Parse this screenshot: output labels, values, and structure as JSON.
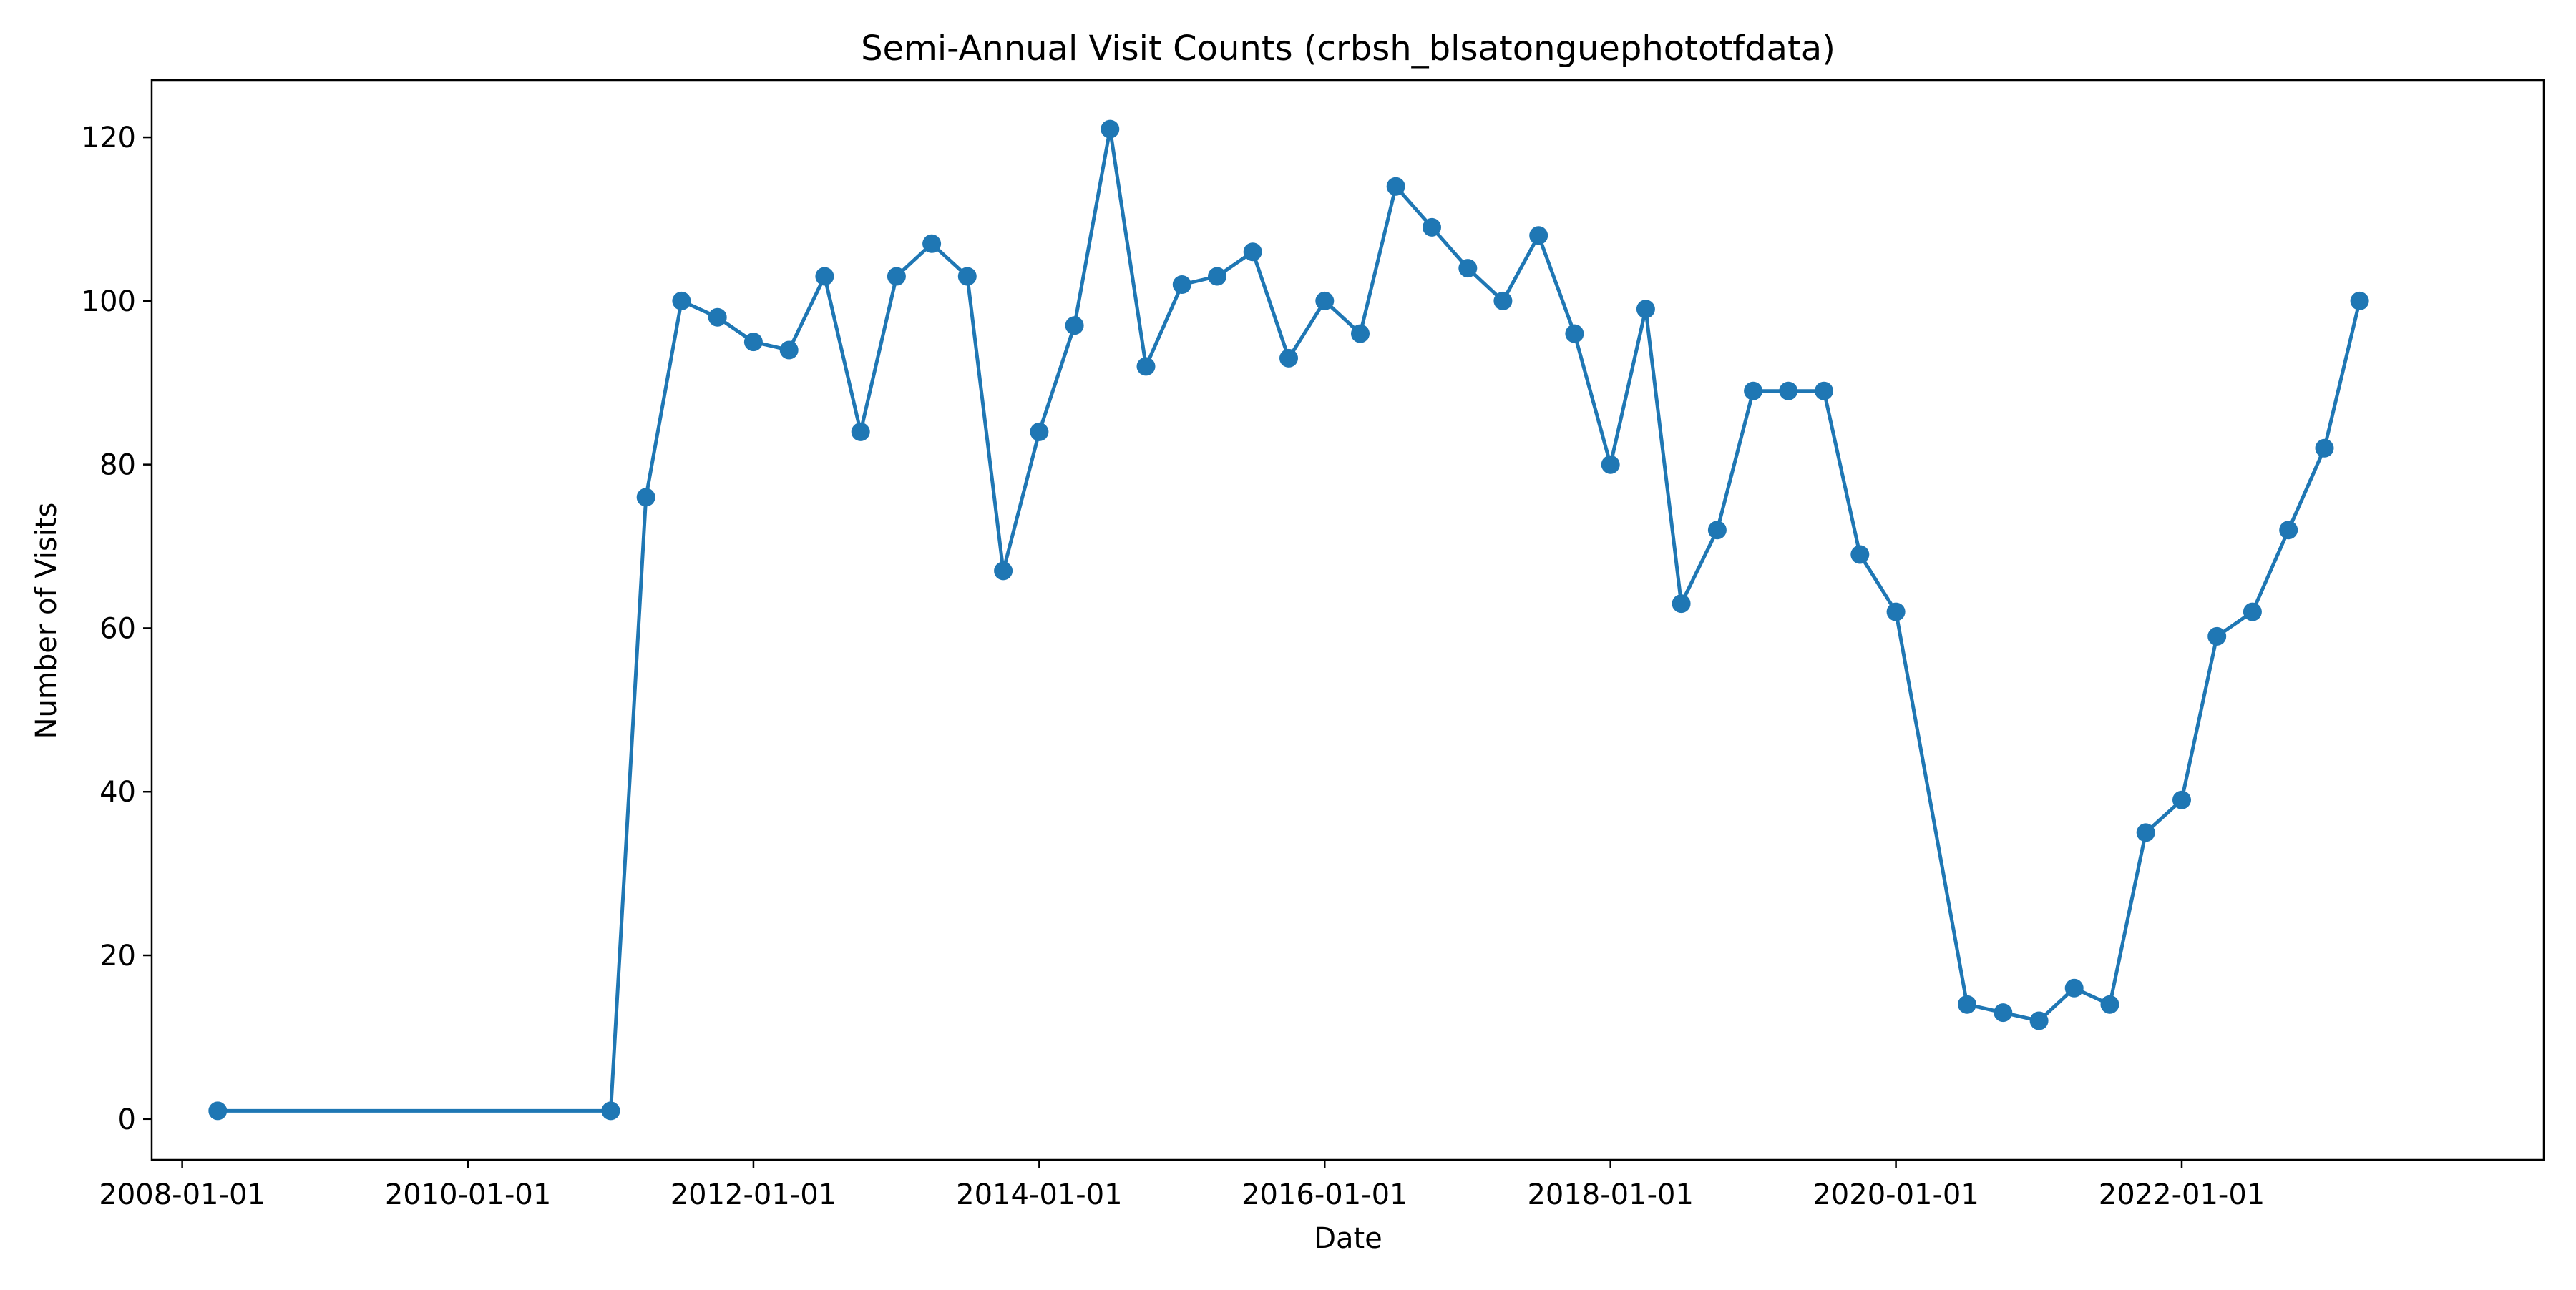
{
  "chart_data": {
    "type": "line",
    "title": "Semi-Annual Visit Counts (crbsh_blsatonguephototfdata)",
    "xlabel": "Date",
    "ylabel": "Number of Visits",
    "x_ticks": [
      "2008-01-01",
      "2010-01-01",
      "2012-01-01",
      "2014-01-01",
      "2016-01-01",
      "2018-01-01",
      "2020-01-01",
      "2022-01-01"
    ],
    "y_ticks": [
      0,
      20,
      40,
      60,
      80,
      100,
      120
    ],
    "xlim": [
      "2007-10-15",
      "2024-07-15"
    ],
    "ylim": [
      -5,
      127
    ],
    "grid": false,
    "legend": false,
    "series": [
      {
        "color": "#1f77b4",
        "marker": "circle",
        "x": [
          "2008-04-01",
          "2011-01-01",
          "2011-04-01",
          "2011-07-01",
          "2011-10-01",
          "2012-01-01",
          "2012-04-01",
          "2012-07-01",
          "2012-10-01",
          "2013-01-01",
          "2013-04-01",
          "2013-07-01",
          "2013-10-01",
          "2014-01-01",
          "2014-04-01",
          "2014-07-01",
          "2014-10-01",
          "2015-01-01",
          "2015-04-01",
          "2015-07-01",
          "2015-10-01",
          "2016-01-01",
          "2016-04-01",
          "2016-07-01",
          "2016-10-01",
          "2017-01-01",
          "2017-04-01",
          "2017-07-01",
          "2017-10-01",
          "2018-01-01",
          "2018-04-01",
          "2018-07-01",
          "2018-10-01",
          "2019-01-01",
          "2019-04-01",
          "2019-07-01",
          "2019-10-01",
          "2020-01-01",
          "2020-07-01",
          "2020-10-01",
          "2021-01-01",
          "2021-04-01",
          "2021-07-01",
          "2021-10-01",
          "2022-01-01",
          "2022-04-01",
          "2022-07-01",
          "2022-10-01",
          "2023-01-01",
          "2023-04-01"
        ],
        "values": [
          1,
          1,
          76,
          100,
          98,
          95,
          94,
          103,
          84,
          103,
          107,
          103,
          67,
          84,
          97,
          121,
          92,
          102,
          103,
          106,
          93,
          100,
          96,
          114,
          109,
          104,
          100,
          108,
          96,
          80,
          99,
          63,
          72,
          89,
          89,
          89,
          69,
          62,
          14,
          13,
          12,
          16,
          14,
          35,
          39,
          59,
          62,
          72,
          82,
          100
        ]
      }
    ]
  }
}
